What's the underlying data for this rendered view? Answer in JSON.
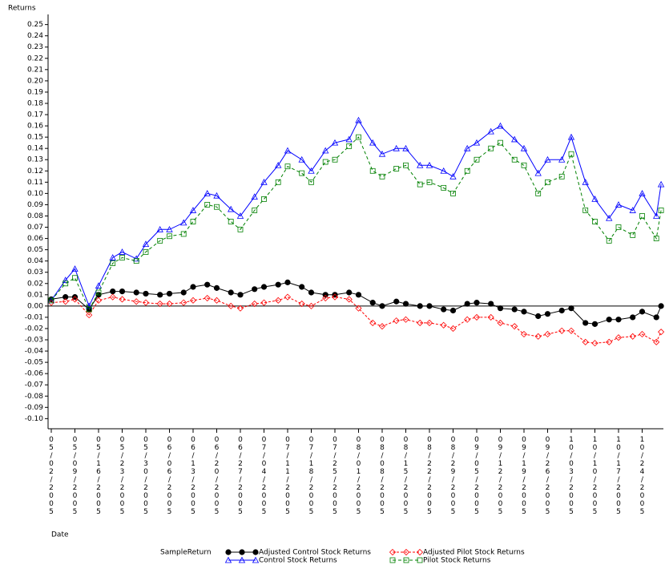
{
  "chart_data": {
    "type": "line",
    "y_label": "Returns",
    "x_label": "Date",
    "legend_title": "SampleReturn",
    "x": [
      "2005-05-02",
      "2005-05-05",
      "2005-05-09",
      "2005-05-12",
      "2005-05-16",
      "2005-05-19",
      "2005-05-23",
      "2005-05-26",
      "2005-05-30",
      "2005-06-02",
      "2005-06-06",
      "2005-06-09",
      "2005-06-13",
      "2005-06-16",
      "2005-06-20",
      "2005-06-23",
      "2005-06-27",
      "2005-06-30",
      "2005-07-04",
      "2005-07-07",
      "2005-07-11",
      "2005-07-14",
      "2005-07-18",
      "2005-07-21",
      "2005-07-25",
      "2005-07-28",
      "2005-08-01",
      "2005-08-04",
      "2005-08-08",
      "2005-08-11",
      "2005-08-15",
      "2005-08-18",
      "2005-08-22",
      "2005-08-25",
      "2005-08-29",
      "2005-09-01",
      "2005-09-05",
      "2005-09-08",
      "2005-09-12",
      "2005-09-15",
      "2005-09-19",
      "2005-09-22",
      "2005-09-26",
      "2005-09-29",
      "2005-10-03",
      "2005-10-06",
      "2005-10-10",
      "2005-10-13",
      "2005-10-17",
      "2005-10-20",
      "2005-10-24",
      "2005-10-27",
      "2005-10-28"
    ],
    "series": [
      {
        "name": "Adjusted Control Stock Returns",
        "color": "#000000",
        "marker": "circle",
        "dash": "none",
        "values": [
          0.006,
          0.008,
          0.008,
          -0.003,
          0.01,
          0.013,
          0.013,
          0.012,
          0.011,
          0.01,
          0.011,
          0.012,
          0.017,
          0.019,
          0.016,
          0.012,
          0.01,
          0.015,
          0.017,
          0.019,
          0.021,
          0.017,
          0.012,
          0.01,
          0.01,
          0.012,
          0.01,
          0.003,
          0.0,
          0.004,
          0.002,
          0.0,
          0.0,
          -0.003,
          -0.004,
          0.002,
          0.003,
          0.002,
          -0.002,
          -0.003,
          -0.005,
          -0.009,
          -0.007,
          -0.004,
          -0.002,
          -0.015,
          -0.016,
          -0.012,
          -0.012,
          -0.01,
          -0.005,
          -0.01,
          0.0
        ]
      },
      {
        "name": "Adjusted Pilot Stock Returns",
        "color": "#ff0000",
        "marker": "diamond",
        "dash": "3,2",
        "values": [
          0.003,
          0.004,
          0.006,
          -0.008,
          0.005,
          0.008,
          0.006,
          0.004,
          0.003,
          0.002,
          0.002,
          0.003,
          0.005,
          0.007,
          0.005,
          0.0,
          -0.002,
          0.002,
          0.003,
          0.005,
          0.008,
          0.002,
          0.0,
          0.007,
          0.008,
          0.006,
          -0.002,
          -0.015,
          -0.018,
          -0.013,
          -0.012,
          -0.015,
          -0.015,
          -0.017,
          -0.02,
          -0.012,
          -0.01,
          -0.01,
          -0.015,
          -0.018,
          -0.025,
          -0.027,
          -0.025,
          -0.022,
          -0.022,
          -0.032,
          -0.033,
          -0.032,
          -0.028,
          -0.027,
          -0.025,
          -0.032,
          -0.023
        ]
      },
      {
        "name": "Control Stock Returns",
        "color": "#0000ff",
        "marker": "triangle",
        "dash": "none",
        "values": [
          0.005,
          0.023,
          0.033,
          0.0,
          0.018,
          0.043,
          0.048,
          0.042,
          0.055,
          0.068,
          0.068,
          0.074,
          0.085,
          0.1,
          0.098,
          0.086,
          0.08,
          0.097,
          0.11,
          0.125,
          0.138,
          0.13,
          0.12,
          0.138,
          0.145,
          0.148,
          0.165,
          0.145,
          0.135,
          0.14,
          0.14,
          0.125,
          0.125,
          0.12,
          0.115,
          0.14,
          0.145,
          0.155,
          0.16,
          0.148,
          0.14,
          0.118,
          0.13,
          0.13,
          0.15,
          0.11,
          0.095,
          0.078,
          0.09,
          0.085,
          0.1,
          0.08,
          0.108
        ]
      },
      {
        "name": "Pilot Stock Returns",
        "color": "#008000",
        "marker": "square",
        "dash": "4,3",
        "values": [
          0.005,
          0.02,
          0.025,
          -0.003,
          0.012,
          0.038,
          0.043,
          0.04,
          0.048,
          0.058,
          0.062,
          0.064,
          0.075,
          0.09,
          0.088,
          0.075,
          0.068,
          0.085,
          0.095,
          0.11,
          0.124,
          0.118,
          0.11,
          0.128,
          0.13,
          0.142,
          0.15,
          0.12,
          0.115,
          0.122,
          0.125,
          0.108,
          0.11,
          0.105,
          0.1,
          0.12,
          0.13,
          0.14,
          0.145,
          0.13,
          0.125,
          0.1,
          0.11,
          0.115,
          0.135,
          0.085,
          0.075,
          0.058,
          0.07,
          0.063,
          0.08,
          0.06,
          0.085
        ]
      }
    ],
    "ylim": [
      -0.109,
      0.259
    ],
    "yticks": [
      {
        "value": -0.1,
        "label": "-0.10"
      },
      -0.09,
      -0.08,
      -0.07,
      -0.06,
      -0.05,
      -0.04,
      -0.03,
      -0.02,
      -0.01,
      {
        "value": 0,
        "label": "0.00"
      },
      0.01,
      0.02,
      0.03,
      0.04,
      0.05,
      0.06,
      0.07,
      0.08,
      0.09,
      {
        "value": 0.1,
        "label": "0.10"
      },
      0.11,
      0.12,
      0.13,
      0.14,
      0.15,
      0.16,
      0.17,
      0.18,
      0.19,
      {
        "value": 0.2,
        "label": "0.20"
      },
      0.21,
      0.22,
      0.23,
      0.24,
      0.25
    ],
    "xticks": [
      {
        "value": "2005-05-02",
        "label": "05/02/2005"
      },
      {
        "value": "2005-05-09",
        "label": "05/09/2005"
      },
      {
        "value": "2005-05-16",
        "label": "05/16/2005"
      },
      {
        "value": "2005-05-23",
        "label": "05/23/2005"
      },
      {
        "value": "2005-05-30",
        "label": "05/30/2005"
      },
      {
        "value": "2005-06-06",
        "label": "06/06/2005"
      },
      {
        "value": "2005-06-13",
        "label": "06/13/2005"
      },
      {
        "value": "2005-06-20",
        "label": "06/20/2005"
      },
      {
        "value": "2005-06-27",
        "label": "06/27/2005"
      },
      {
        "value": "2005-07-04",
        "label": "07/04/2005"
      },
      {
        "value": "2005-07-11",
        "label": "07/11/2005"
      },
      {
        "value": "2005-07-18",
        "label": "07/18/2005"
      },
      {
        "value": "2005-07-25",
        "label": "07/25/2005"
      },
      {
        "value": "2005-08-01",
        "label": "08/01/2005"
      },
      {
        "value": "2005-08-08",
        "label": "08/08/2005"
      },
      {
        "value": "2005-08-15",
        "label": "08/15/2005"
      },
      {
        "value": "2005-08-22",
        "label": "08/22/2005"
      },
      {
        "value": "2005-08-29",
        "label": "08/29/2005"
      },
      {
        "value": "2005-09-05",
        "label": "09/05/2005"
      },
      {
        "value": "2005-09-12",
        "label": "09/12/2005"
      },
      {
        "value": "2005-09-19",
        "label": "09/19/2005"
      },
      {
        "value": "2005-09-26",
        "label": "09/26/2005"
      },
      {
        "value": "2005-10-03",
        "label": "10/03/2005"
      },
      {
        "value": "2005-10-10",
        "label": "10/10/2005"
      },
      {
        "value": "2005-10-17",
        "label": "10/17/2005"
      },
      {
        "value": "2005-10-24",
        "label": "10/24/2005"
      }
    ],
    "hline": 0
  }
}
